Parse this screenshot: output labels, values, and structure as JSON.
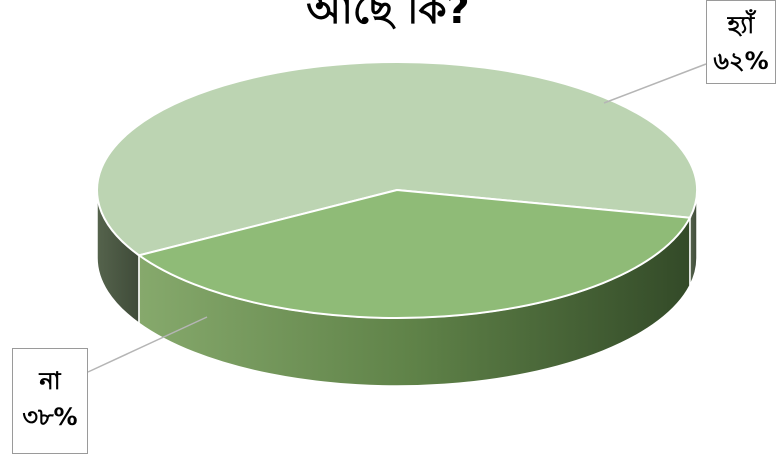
{
  "chart_data": {
    "type": "pie",
    "title": "আছে কি?",
    "categories": [
      "হ্যাঁ",
      "না"
    ],
    "values": [
      62,
      38
    ],
    "data_labels": [
      "৬২%",
      "৩৮%"
    ],
    "colors": [
      "#bcd4b2",
      "#8fbb77"
    ],
    "three_d": true,
    "legend": "none"
  }
}
